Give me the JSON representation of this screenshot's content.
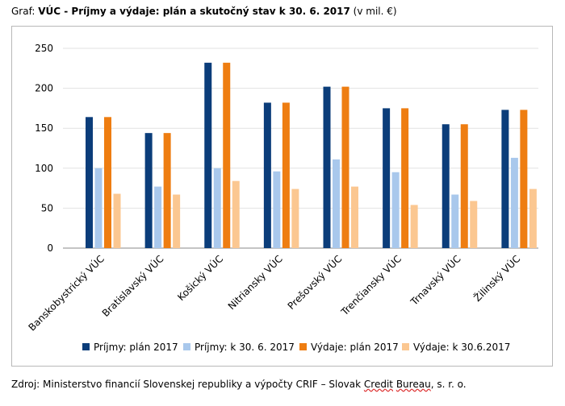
{
  "caption": {
    "prefix": "Graf: ",
    "title": "VÚC - Príjmy a výdaje: plán a skutočný stav k 30. 6. 2017",
    "unit": " (v mil. €)"
  },
  "source": {
    "text_before": "Zdroj: Ministerstvo financií Slovenskej republiky a výpočty CRIF – Slovak ",
    "squiggle_1": "Credit",
    "space": " ",
    "squiggle_2": "Bureau",
    "text_after": ", s. r. o."
  },
  "chart_data": {
    "type": "bar",
    "title": "VÚC - Príjmy a výdaje: plán a skutočný stav k 30. 6. 2017 (v mil. €)",
    "xlabel": "",
    "ylabel": "",
    "ylim": [
      0,
      250
    ],
    "yticks": [
      0,
      50,
      100,
      150,
      200,
      250
    ],
    "grid": true,
    "legend_position": "bottom",
    "categories": [
      "Banskobystrický VÚC",
      "Bratislavský VÚC",
      "Košický VÚC",
      "Nitriansky VÚC",
      "Prešovský VÚC",
      "Trenčiansky VÚC",
      "Trnavský VÚC",
      "Žilinský VÚC"
    ],
    "series": [
      {
        "name": "Príjmy: plán 2017",
        "color": "#0b3d7a",
        "values": [
          164,
          144,
          232,
          182,
          202,
          175,
          155,
          173
        ]
      },
      {
        "name": "Príjmy: k 30. 6. 2017",
        "color": "#a9c8ec",
        "values": [
          100,
          77,
          100,
          96,
          111,
          95,
          67,
          113
        ]
      },
      {
        "name": "Výdaje: plán 2017",
        "color": "#ee7d11",
        "values": [
          164,
          144,
          232,
          182,
          202,
          175,
          155,
          173
        ]
      },
      {
        "name": "Výdaje: k 30.6.2017",
        "color": "#fbc791",
        "values": [
          68,
          67,
          84,
          74,
          77,
          54,
          59,
          74
        ]
      }
    ]
  }
}
